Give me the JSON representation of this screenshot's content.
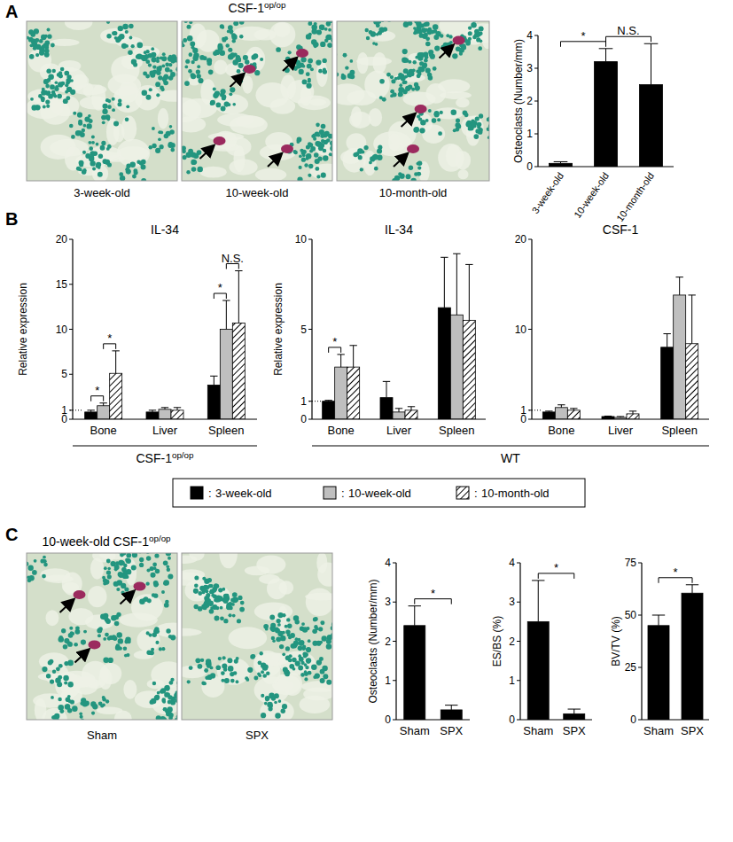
{
  "figure": {
    "panel_labels": [
      "A",
      "B",
      "C"
    ],
    "image_groups": [
      {
        "title": {
          "text": "CSF-1",
          "sup": "op/op"
        },
        "captions": [
          "3-week-old",
          "10-week-old",
          "10-month-old"
        ]
      },
      {
        "title": {
          "text": "10-week-old CSF-1",
          "sup": "op/op"
        },
        "captions": [
          "Sham",
          "SPX"
        ]
      }
    ],
    "group_labels": [
      {
        "text": "CSF-1",
        "sup": "op/op"
      },
      {
        "text": "WT"
      }
    ],
    "legend_separator": ":"
  },
  "chart_data": [
    {
      "type": "bar",
      "y_label": "Osteoclasts (Number/mm)",
      "categories": [
        "3-week-old",
        "10-week-old",
        "10-month-old"
      ],
      "values": [
        0.1,
        3.2,
        2.5
      ],
      "errors": [
        0.05,
        0.4,
        1.25
      ],
      "color": "#000000",
      "ylim": [
        0,
        4
      ],
      "yticks": [
        0,
        1,
        2,
        3,
        4
      ],
      "significance": [
        {
          "from": 0,
          "to": 1,
          "label": "*"
        },
        {
          "from": 1,
          "to": 2,
          "label": "N.S."
        }
      ]
    },
    {
      "type": "bar",
      "title": "IL-34",
      "y_label": "Relative expression",
      "categories": [
        "Bone",
        "Liver",
        "Spleen"
      ],
      "series": [
        {
          "name": "3-week-old",
          "color": "#000000",
          "values": [
            0.8,
            0.8,
            3.8
          ],
          "errors": [
            0.2,
            0.2,
            1.0
          ]
        },
        {
          "name": "10-week-old",
          "color": "#bfbfbf",
          "values": [
            1.5,
            1.1,
            10.0
          ],
          "errors": [
            0.3,
            0.2,
            3.2
          ]
        },
        {
          "name": "10-month-old",
          "color": "#000000",
          "line_style": "hatched",
          "values": [
            5.1,
            1.0,
            10.7
          ],
          "errors": [
            2.5,
            0.3,
            5.8
          ]
        }
      ],
      "ylim": [
        0,
        20
      ],
      "yticks": [
        0,
        1,
        5,
        10,
        15,
        20
      ],
      "hline": 1,
      "significance": [
        {
          "category": 0,
          "from": 0,
          "to": 1,
          "label": "*"
        },
        {
          "category": 0,
          "from": 1,
          "to": 2,
          "label": "*"
        },
        {
          "category": 2,
          "from": 0,
          "to": 1,
          "label": "*"
        },
        {
          "category": 2,
          "from": 1,
          "to": 2,
          "label": "N.S."
        }
      ]
    },
    {
      "type": "bar",
      "title": "IL-34",
      "y_label": "Relative expression",
      "categories": [
        "Bone",
        "Liver",
        "Spleen"
      ],
      "series": [
        {
          "name": "3-week-old",
          "color": "#000000",
          "values": [
            1.0,
            1.2,
            6.2
          ],
          "errors": [
            0.05,
            0.9,
            2.8
          ]
        },
        {
          "name": "10-week-old",
          "color": "#bfbfbf",
          "values": [
            2.9,
            0.4,
            5.8
          ],
          "errors": [
            0.7,
            0.2,
            3.4
          ]
        },
        {
          "name": "10-month-old",
          "color": "#000000",
          "line_style": "hatched",
          "values": [
            2.9,
            0.5,
            5.5
          ],
          "errors": [
            1.2,
            0.2,
            3.1
          ]
        }
      ],
      "ylim": [
        0,
        10
      ],
      "yticks": [
        0,
        1,
        5,
        10
      ],
      "hline": 1,
      "significance": [
        {
          "category": 0,
          "from": 0,
          "to": 1,
          "label": "*"
        }
      ]
    },
    {
      "type": "bar",
      "title": "CSF-1",
      "categories": [
        "Bone",
        "Liver",
        "Spleen"
      ],
      "series": [
        {
          "name": "3-week-old",
          "color": "#000000",
          "values": [
            0.8,
            0.3,
            8.0
          ],
          "errors": [
            0.1,
            0.05,
            1.5
          ]
        },
        {
          "name": "10-week-old",
          "color": "#bfbfbf",
          "values": [
            1.3,
            0.2,
            13.8
          ],
          "errors": [
            0.3,
            0.1,
            2.0
          ]
        },
        {
          "name": "10-month-old",
          "color": "#000000",
          "line_style": "hatched",
          "values": [
            1.0,
            0.6,
            8.4
          ],
          "errors": [
            0.2,
            0.3,
            5.4
          ]
        }
      ],
      "ylim": [
        0,
        20
      ],
      "yticks": [
        0,
        1,
        10,
        20
      ],
      "hline": 1
    },
    {
      "type": "bar",
      "y_label": "Osteoclasts (Number/mm)",
      "categories": [
        "Sham",
        "SPX"
      ],
      "values": [
        2.4,
        0.25
      ],
      "errors": [
        0.5,
        0.12
      ],
      "color": "#000000",
      "ylim": [
        0,
        4
      ],
      "yticks": [
        0,
        1,
        2,
        3,
        4
      ],
      "significance": [
        {
          "from": 0,
          "to": 1,
          "label": "*"
        }
      ]
    },
    {
      "type": "bar",
      "y_label": "ES/BS (%)",
      "categories": [
        "Sham",
        "SPX"
      ],
      "values": [
        2.5,
        0.15
      ],
      "errors": [
        1.05,
        0.12
      ],
      "color": "#000000",
      "ylim": [
        0,
        4
      ],
      "yticks": [
        0,
        1,
        2,
        3,
        4
      ],
      "significance": [
        {
          "from": 0,
          "to": 1,
          "label": "*"
        }
      ]
    },
    {
      "type": "bar",
      "y_label": "BV/TV (%)",
      "categories": [
        "Sham",
        "SPX"
      ],
      "values": [
        45,
        60.5
      ],
      "errors": [
        5,
        4
      ],
      "color": "#000000",
      "ylim": [
        0,
        75
      ],
      "yticks": [
        0,
        25,
        50,
        75
      ],
      "significance": [
        {
          "from": 0,
          "to": 1,
          "label": "*"
        }
      ]
    }
  ]
}
